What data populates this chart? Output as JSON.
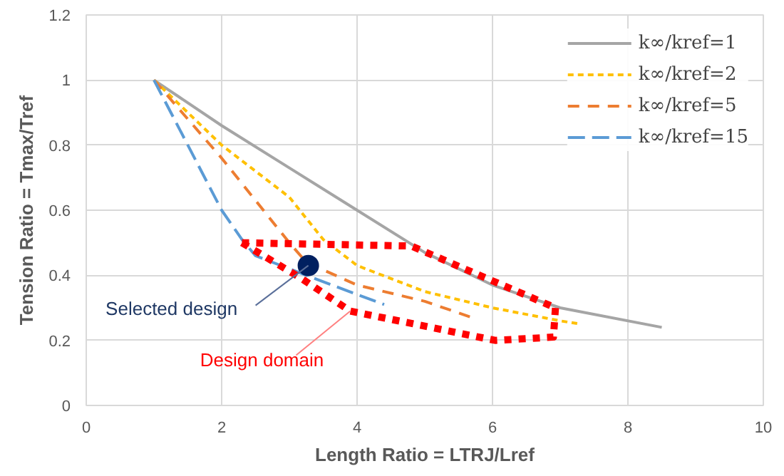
{
  "chart_data": {
    "type": "line",
    "xlabel": "Length Ratio = LTRJ/Lref",
    "ylabel": "Tension Ratio = Tmax/Tref",
    "xlim": [
      0,
      10
    ],
    "xticks": [
      0,
      2,
      4,
      6,
      8,
      10
    ],
    "ylim": [
      0,
      1.2
    ],
    "yticks": [
      0,
      0.2,
      0.4,
      0.6,
      0.8,
      1,
      1.2
    ],
    "grid": true,
    "legend": "top right",
    "series": [
      {
        "name": "k∞/kref=1",
        "color": "#a5a5a5",
        "line_style": "solid",
        "x": [
          1,
          2,
          3,
          4,
          5,
          6,
          7,
          8.5
        ],
        "values": [
          1,
          0.86,
          0.73,
          0.6,
          0.47,
          0.37,
          0.3,
          0.24
        ]
      },
      {
        "name": "k∞/kref=2",
        "color": "#ffc000",
        "line_style": "dashed",
        "x": [
          1,
          2,
          3,
          3.5,
          4,
          5,
          6,
          7,
          7.3
        ],
        "values": [
          1,
          0.8,
          0.64,
          0.51,
          0.43,
          0.35,
          0.3,
          0.26,
          0.25
        ]
      },
      {
        "name": "k∞/kref=5",
        "color": "#ed7d31",
        "line_style": "dashed",
        "x": [
          1,
          2,
          2.5,
          3,
          3.25,
          4,
          5,
          5.7
        ],
        "values": [
          1,
          0.76,
          0.63,
          0.5,
          0.44,
          0.37,
          0.32,
          0.27
        ]
      },
      {
        "name": "k∞/kref=15",
        "color": "#5b9bd5",
        "line_style": "dashed",
        "x": [
          1,
          1.5,
          2,
          2.3,
          2.5,
          3,
          3.5,
          4.4
        ],
        "values": [
          1,
          0.8,
          0.6,
          0.51,
          0.46,
          0.42,
          0.38,
          0.31
        ]
      },
      {
        "color": "#ff0000",
        "line_style": "dotted",
        "x": [
          2.3,
          4.8,
          6.93
        ],
        "values": [
          0.5,
          0.49,
          0.3
        ]
      },
      {
        "color": "#ff0000",
        "line_style": "dotted",
        "x": [
          2.3,
          2.54,
          3.18,
          3.9,
          6.04,
          6.9,
          6.93
        ],
        "values": [
          0.5,
          0.47,
          0.39,
          0.29,
          0.2,
          0.21,
          0.3
        ]
      },
      {
        "type": "scatter",
        "marker": "circle",
        "color": "#002060",
        "x": [
          3.28
        ],
        "values": [
          0.43
        ]
      }
    ],
    "annotations": [
      {
        "text": "Selected design",
        "x": 3.28,
        "y": 0.43
      },
      {
        "text": "Design domain",
        "x": 3.9,
        "y": 0.29
      }
    ]
  }
}
